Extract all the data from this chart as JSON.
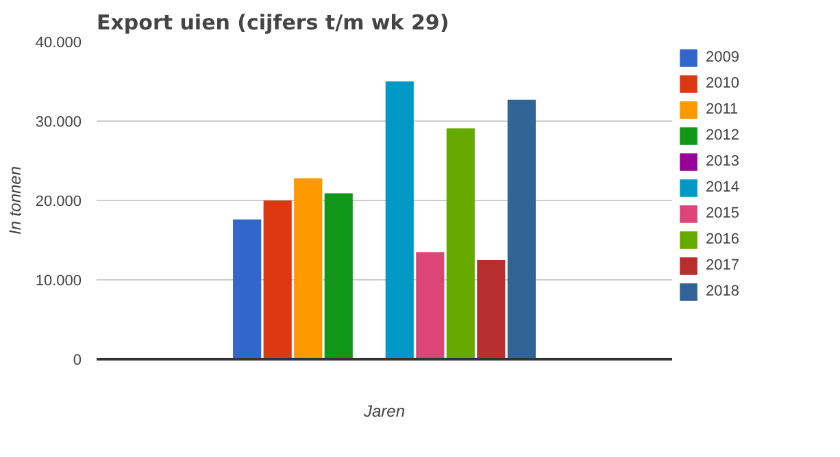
{
  "chart_data": {
    "type": "bar",
    "title": "Export uien (cijfers t/m wk 29)",
    "xlabel": "Jaren",
    "ylabel": "In tonnen",
    "categories": [
      null
    ],
    "series": [
      {
        "name": "2009",
        "color": "#3366cc",
        "values": [
          17600
        ]
      },
      {
        "name": "2010",
        "color": "#dc3912",
        "values": [
          20000
        ]
      },
      {
        "name": "2011",
        "color": "#ff9900",
        "values": [
          22800
        ]
      },
      {
        "name": "2012",
        "color": "#109618",
        "values": [
          20900
        ]
      },
      {
        "name": "2013",
        "color": "#990099",
        "values": [
          null
        ]
      },
      {
        "name": "2014",
        "color": "#0099c6",
        "values": [
          35000
        ]
      },
      {
        "name": "2015",
        "color": "#dd4477",
        "values": [
          13500
        ]
      },
      {
        "name": "2016",
        "color": "#66aa00",
        "values": [
          29100
        ]
      },
      {
        "name": "2017",
        "color": "#b82e2e",
        "values": [
          12500
        ]
      },
      {
        "name": "2018",
        "color": "#316395",
        "values": [
          32700
        ]
      }
    ],
    "ylim": [
      0,
      40000
    ],
    "yticks": [
      {
        "value": 0,
        "label": "0"
      },
      {
        "value": 10000,
        "label": "10.000"
      },
      {
        "value": 20000,
        "label": "20.000"
      },
      {
        "value": 30000,
        "label": "30.000"
      },
      {
        "value": 40000,
        "label": "40.000"
      }
    ],
    "grid": "y",
    "legend": "right"
  }
}
